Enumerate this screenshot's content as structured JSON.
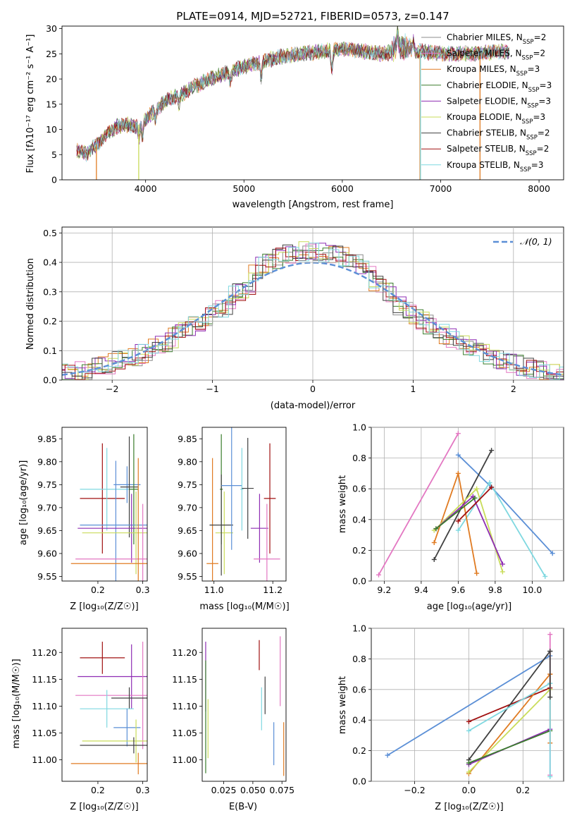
{
  "chart_data": [
    {
      "id": "spectrum",
      "type": "line",
      "title": "PLATE=0914, MJD=52721, FIBERID=0573, z=0.147",
      "xlabel": "wavelength [Angstrom, rest frame]",
      "ylabel": "Flux [fλ10⁻¹⁷ erg cm⁻² s⁻¹ A⁻¹]",
      "xlim": [
        3150,
        8250
      ],
      "ylim": [
        0,
        30.5
      ],
      "xticks": [
        4000,
        5000,
        6000,
        7000,
        8000
      ],
      "yticks": [
        0,
        5,
        10,
        15,
        20,
        25,
        30
      ],
      "grid": false,
      "legend_position": "top-right",
      "continuum": {
        "x": [
          3300,
          3400,
          3500,
          3600,
          3700,
          3800,
          3900,
          4000,
          4100,
          4200,
          4300,
          4400,
          4500,
          4600,
          4800,
          5000,
          5200,
          5400,
          5600,
          5800,
          6000,
          6200,
          6400,
          6600,
          6800,
          7000,
          7200,
          7400,
          7600,
          7700
        ],
        "y": [
          5.8,
          5.2,
          7.0,
          9.0,
          10.5,
          11.0,
          10.5,
          12.0,
          14.0,
          15.5,
          16.5,
          17.5,
          18.5,
          19.5,
          21.0,
          22.5,
          23.5,
          24.5,
          25.0,
          25.5,
          26.0,
          25.5,
          25.0,
          25.5,
          25.5,
          25.0,
          25.0,
          25.0,
          25.5,
          25.0
        ]
      },
      "legend": [
        {
          "name": "Chabrier MILES, N_SSP=2",
          "color": "#8c8c8c"
        },
        {
          "name": "Salpeter MILES, N_SSP=2",
          "color": "#e377c2"
        },
        {
          "name": "Kroupa MILES, N_SSP=3",
          "color": "#e07b22"
        },
        {
          "name": "Chabrier ELODIE, N_SSP=3",
          "color": "#3a7d2c"
        },
        {
          "name": "Salpeter ELODIE, N_SSP=3",
          "color": "#8e2db3"
        },
        {
          "name": "Kroupa ELODIE, N_SSP=3",
          "color": "#c9dc5a"
        },
        {
          "name": "Chabrier STELIB, N_SSP=2",
          "color": "#404040"
        },
        {
          "name": "Salpeter STELIB, N_SSP=2",
          "color": "#a01010"
        },
        {
          "name": "Kroupa STELIB, N_SSP=3",
          "color": "#7fd8e0"
        }
      ],
      "cutoffs": [
        {
          "x": 3500,
          "color": "#e07b22"
        },
        {
          "x": 3930,
          "color": "#c9dc5a"
        },
        {
          "x": 6790,
          "color": "#e07b22"
        },
        {
          "x": 6795,
          "color": "#7fd8e0"
        },
        {
          "x": 7400,
          "color": "#e07b22"
        }
      ]
    },
    {
      "id": "residuals",
      "type": "line",
      "xlabel": "(data-model)/error",
      "ylabel": "Normed distribution",
      "xlim": [
        -2.5,
        2.5
      ],
      "ylim": [
        0,
        0.52
      ],
      "xticks": [
        -2,
        -1,
        0,
        1,
        2
      ],
      "yticks": [
        0.0,
        0.1,
        0.2,
        0.3,
        0.4,
        0.5
      ],
      "grid": true,
      "legend": [
        {
          "name": "𝒩(0, 1)",
          "color": "#5b8fd6"
        }
      ],
      "legend_position": "top-right",
      "bin_width": 0.1,
      "histogram_colors": [
        "#8c8c8c",
        "#e377c2",
        "#e07b22",
        "#3a7d2c",
        "#8e2db3",
        "#c9dc5a",
        "#404040",
        "#a01010",
        "#7fd8e0"
      ]
    },
    {
      "id": "age-z",
      "type": "scatter",
      "xlabel": "Z [log₁₀(Z/Z☉)]",
      "ylabel": "age  [log₁₀(age/yr)]",
      "xlim": [
        0.12,
        0.31
      ],
      "ylim": [
        9.54,
        9.875
      ],
      "xticks": [
        0.2,
        0.3
      ],
      "yticks": [
        9.55,
        9.6,
        9.65,
        9.7,
        9.75,
        9.8,
        9.85
      ],
      "points": [
        {
          "color": "#a01010",
          "x": 0.21,
          "xerr": 0.05,
          "y": 9.72,
          "yerr": 0.12
        },
        {
          "color": "#7fd8e0",
          "x": 0.22,
          "xerr": 0.06,
          "y": 9.74,
          "yerr": 0.09
        },
        {
          "color": "#5b8fd6",
          "x": 0.265,
          "xerr": 0.03,
          "y": 9.75,
          "yerr": 0.04
        },
        {
          "color": "#404040",
          "x": 0.27,
          "xerr": 0.02,
          "y": 9.745,
          "yerr": 0.11
        },
        {
          "color": "#3a7d2c",
          "x": 0.28,
          "xerr": 0.01,
          "y": 9.74,
          "yerr": 0.12
        },
        {
          "color": "#5b8fd6",
          "x": 0.24,
          "xerr": 0.08,
          "y": 9.662,
          "yerr": 0.14
        },
        {
          "color": "#8e2db3",
          "x": 0.275,
          "xerr": 0.12,
          "y": 9.655,
          "yerr": 0.075
        },
        {
          "color": "#c9dc5a",
          "x": 0.285,
          "xerr": 0.12,
          "y": 9.645,
          "yerr": 0.09
        },
        {
          "color": "#e377c2",
          "x": 0.3,
          "xerr": 0.15,
          "y": 9.588,
          "yerr": 0.12
        },
        {
          "color": "#e07b22",
          "x": 0.29,
          "xerr": 0.15,
          "y": 9.578,
          "yerr": 0.23
        }
      ]
    },
    {
      "id": "age-mass",
      "type": "scatter",
      "xlabel": "mass [log₁₀(M/M☉)]",
      "ylabel": "",
      "xlim": [
        10.96,
        11.245
      ],
      "ylim": [
        9.54,
        9.875
      ],
      "xticks": [
        11.0,
        11.2
      ],
      "yticks": [
        9.55,
        9.6,
        9.65,
        9.7,
        9.75,
        9.8,
        9.85
      ],
      "points": [
        {
          "color": "#e07b22",
          "x": 10.995,
          "xerr": 0.02,
          "y": 9.578,
          "yerr": 0.23
        },
        {
          "color": "#c9dc5a",
          "x": 11.035,
          "xerr": 0.03,
          "y": 9.645,
          "yerr": 0.09
        },
        {
          "color": "#3a7d2c",
          "x": 11.025,
          "xerr": 0.005,
          "y": 9.74,
          "yerr": 0.12
        },
        {
          "color": "#404040",
          "x": 11.025,
          "xerr": 0.04,
          "y": 9.662,
          "yerr": 0.11
        },
        {
          "color": "#5b8fd6",
          "x": 11.06,
          "xerr": 0.035,
          "y": 9.748,
          "yerr": 0.14
        },
        {
          "color": "#7fd8e0",
          "x": 11.095,
          "xerr": 0.005,
          "y": 9.74,
          "yerr": 0.09
        },
        {
          "color": "#404040",
          "x": 11.115,
          "xerr": 0.02,
          "y": 9.742,
          "yerr": 0.11
        },
        {
          "color": "#8e2db3",
          "x": 11.155,
          "xerr": 0.03,
          "y": 9.655,
          "yerr": 0.075
        },
        {
          "color": "#e377c2",
          "x": 11.18,
          "xerr": 0.045,
          "y": 9.588,
          "yerr": 0.12
        },
        {
          "color": "#a01010",
          "x": 11.19,
          "xerr": 0.02,
          "y": 9.72,
          "yerr": 0.12
        }
      ]
    },
    {
      "id": "weight-age",
      "type": "line",
      "xlabel": "age  [log₁₀(age/yr)]",
      "ylabel": "mass weight",
      "xlim": [
        9.13,
        10.17
      ],
      "ylim": [
        0,
        1.0
      ],
      "xticks": [
        9.2,
        9.4,
        9.6,
        9.8,
        10.0
      ],
      "yticks": [
        0.0,
        0.2,
        0.4,
        0.6,
        0.8,
        1.0
      ],
      "grid": true,
      "series": [
        {
          "color": "#e377c2",
          "x": [
            9.17,
            9.6
          ],
          "y": [
            0.04,
            0.96
          ]
        },
        {
          "color": "#5b8fd6",
          "x": [
            9.6,
            9.78,
            10.11
          ],
          "y": [
            0.82,
            0.61,
            0.18
          ]
        },
        {
          "color": "#7fd8e0",
          "x": [
            9.6,
            9.77,
            10.07
          ],
          "y": [
            0.33,
            0.64,
            0.03
          ]
        },
        {
          "color": "#404040",
          "x": [
            9.47,
            9.78
          ],
          "y": [
            0.14,
            0.85
          ]
        },
        {
          "color": "#e07b22",
          "x": [
            9.47,
            9.6,
            9.7
          ],
          "y": [
            0.25,
            0.7,
            0.05
          ]
        },
        {
          "color": "#c9dc5a",
          "x": [
            9.47,
            9.7,
            9.84
          ],
          "y": [
            0.33,
            0.6,
            0.06
          ]
        },
        {
          "color": "#8e2db3",
          "x": [
            9.48,
            9.68,
            9.84
          ],
          "y": [
            0.34,
            0.55,
            0.11
          ]
        },
        {
          "color": "#a01010",
          "x": [
            9.6,
            9.78
          ],
          "y": [
            0.39,
            0.61
          ]
        },
        {
          "color": "#3a7d2c",
          "x": [
            9.48,
            9.69
          ],
          "y": [
            0.34,
            0.54
          ]
        }
      ]
    },
    {
      "id": "mass-z",
      "type": "scatter",
      "xlabel": "Z [log₁₀(Z/Z☉)]",
      "ylabel": "mass [log₁₀(M/M☉)]",
      "xlim": [
        0.12,
        0.31
      ],
      "ylim": [
        10.96,
        11.245
      ],
      "xticks": [
        0.2,
        0.3
      ],
      "yticks": [
        11.0,
        11.05,
        11.1,
        11.15,
        11.2
      ],
      "points": [
        {
          "color": "#a01010",
          "x": 0.21,
          "xerr": 0.05,
          "y": 11.19,
          "yerr": 0.03
        },
        {
          "color": "#8e2db3",
          "x": 0.275,
          "xerr": 0.12,
          "y": 11.155,
          "yerr": 0.06
        },
        {
          "color": "#e377c2",
          "x": 0.3,
          "xerr": 0.15,
          "y": 11.12,
          "yerr": 0.1
        },
        {
          "color": "#404040",
          "x": 0.27,
          "xerr": 0.04,
          "y": 11.115,
          "yerr": 0.02
        },
        {
          "color": "#7fd8e0",
          "x": 0.22,
          "xerr": 0.06,
          "y": 11.095,
          "yerr": 0.035
        },
        {
          "color": "#5b8fd6",
          "x": 0.265,
          "xerr": 0.03,
          "y": 11.06,
          "yerr": 0.035
        },
        {
          "color": "#c9dc5a",
          "x": 0.285,
          "xerr": 0.12,
          "y": 11.035,
          "yerr": 0.04
        },
        {
          "color": "#404040",
          "x": 0.28,
          "xerr": 0.12,
          "y": 11.027,
          "yerr": 0.015
        },
        {
          "color": "#e07b22",
          "x": 0.29,
          "xerr": 0.15,
          "y": 10.993,
          "yerr": 0.02
        }
      ]
    },
    {
      "id": "mass-ebv",
      "type": "scatter",
      "xlabel": "E(B-V)",
      "ylabel": "",
      "xlim": [
        0.0065,
        0.0785
      ],
      "ylim": [
        10.96,
        11.245
      ],
      "xticks": [
        0.025,
        0.05,
        0.075
      ],
      "xticklabels": [
        "0.025",
        "0.050",
        "0.075"
      ],
      "yticks": [
        11.0,
        11.05,
        11.1,
        11.15,
        11.2
      ],
      "points": [
        {
          "color": "#8e2db3",
          "x": 0.0095,
          "y": 11.155,
          "yerr": 0.065
        },
        {
          "color": "#3a7d2c",
          "x": 0.0095,
          "y": 11.08,
          "yerr": 0.105
        },
        {
          "color": "#c9dc5a",
          "x": 0.0115,
          "y": 11.058,
          "yerr": 0.055
        },
        {
          "color": "#a01010",
          "x": 0.0555,
          "y": 11.195,
          "yerr": 0.028
        },
        {
          "color": "#7fd8e0",
          "x": 0.0575,
          "y": 11.095,
          "yerr": 0.04
        },
        {
          "color": "#404040",
          "x": 0.0605,
          "y": 11.12,
          "yerr": 0.035
        },
        {
          "color": "#5b8fd6",
          "x": 0.068,
          "y": 11.03,
          "yerr": 0.04
        },
        {
          "color": "#e377c2",
          "x": 0.0735,
          "y": 11.165,
          "yerr": 0.065
        },
        {
          "color": "#e07b22",
          "x": 0.0765,
          "y": 11.02,
          "yerr": 0.05
        }
      ]
    },
    {
      "id": "weight-z",
      "type": "line",
      "xlabel": "Z [log₁₀(Z/Z☉)]",
      "ylabel": "mass weight",
      "xlim": [
        -0.36,
        0.35
      ],
      "ylim": [
        0,
        1.0
      ],
      "xticks": [
        -0.2,
        0.0,
        0.2
      ],
      "yticks": [
        0.0,
        0.2,
        0.4,
        0.6,
        0.8,
        1.0
      ],
      "grid": true,
      "series": [
        {
          "color": "#5b8fd6",
          "x": [
            -0.3,
            0.3
          ],
          "y": [
            0.17,
            0.82
          ]
        },
        {
          "color": "#a01010",
          "x": [
            0.0,
            0.3
          ],
          "y": [
            0.39,
            0.61
          ]
        },
        {
          "color": "#404040",
          "x": [
            0.0,
            0.3
          ],
          "y": [
            0.14,
            0.85
          ]
        },
        {
          "color": "#e07b22",
          "x": [
            0.0,
            0.3
          ],
          "y": [
            0.05,
            0.7
          ]
        },
        {
          "color": "#c9dc5a",
          "x": [
            0.0,
            0.3
          ],
          "y": [
            0.06,
            0.6
          ]
        },
        {
          "color": "#7fd8e0",
          "x": [
            0.0,
            0.3
          ],
          "y": [
            0.33,
            0.64
          ]
        },
        {
          "color": "#8e2db3",
          "x": [
            0.0,
            0.3
          ],
          "y": [
            0.11,
            0.34
          ]
        },
        {
          "color": "#3a7d2c",
          "x": [
            0.0,
            0.3
          ],
          "y": [
            0.12,
            0.33
          ]
        }
      ],
      "markers_at_right": [
        {
          "color": "#e377c2",
          "x": 0.3,
          "y": [
            0.04,
            0.96
          ]
        },
        {
          "color": "#e07b22",
          "x": 0.3,
          "y": [
            0.25,
            0.7
          ]
        },
        {
          "color": "#7fd8e0",
          "x": 0.3,
          "y": [
            0.03,
            0.64
          ]
        },
        {
          "color": "#404040",
          "x": 0.3,
          "y": [
            0.55,
            0.85
          ]
        }
      ]
    }
  ]
}
